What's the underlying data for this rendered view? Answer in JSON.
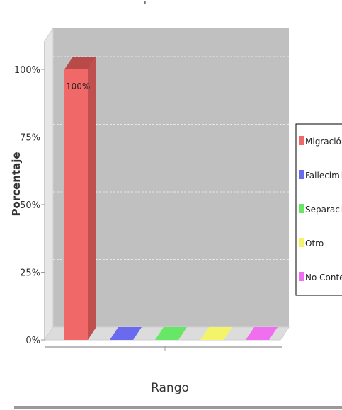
{
  "title": "'",
  "chart_data": {
    "type": "bar",
    "title": "'",
    "xlabel": "Rango",
    "ylabel": "Porcentaje",
    "ylim": [
      0,
      100
    ],
    "yticks": [
      "0%",
      "25%",
      "50%",
      "75%",
      "100%"
    ],
    "tick_values": [
      0,
      25,
      50,
      75,
      100
    ],
    "series": [
      {
        "name": "Migración",
        "value": 100,
        "label": "100%",
        "color": "#f06868"
      },
      {
        "name": "Fallecimiento",
        "value": 0,
        "label": "",
        "color": "#6a6af0"
      },
      {
        "name": "Separación",
        "value": 0,
        "label": "",
        "color": "#66e866"
      },
      {
        "name": "Otro",
        "value": 0,
        "label": "",
        "color": "#f4f46a"
      },
      {
        "name": "No Contesto",
        "value": 0,
        "label": "",
        "color": "#f06ef0"
      }
    ],
    "legend_position": "right",
    "grid": true,
    "plot_background": "#c0c0c0"
  }
}
